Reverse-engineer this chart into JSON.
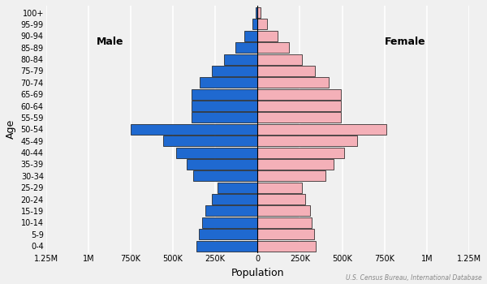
{
  "age_groups": [
    "0-4",
    "5-9",
    "10-14",
    "15-19",
    "20-24",
    "25-29",
    "30-34",
    "35-39",
    "40-44",
    "45-49",
    "50-54",
    "55-59",
    "60-64",
    "65-69",
    "70-74",
    "75-79",
    "80-84",
    "85-89",
    "90-94",
    "95-99",
    "100+"
  ],
  "male": [
    360000,
    345000,
    330000,
    310000,
    270000,
    235000,
    380000,
    420000,
    480000,
    560000,
    750000,
    390000,
    390000,
    390000,
    340000,
    270000,
    200000,
    130000,
    80000,
    30000,
    10000
  ],
  "female": [
    345000,
    335000,
    320000,
    310000,
    280000,
    260000,
    400000,
    450000,
    510000,
    590000,
    760000,
    490000,
    490000,
    490000,
    420000,
    340000,
    260000,
    185000,
    120000,
    55000,
    20000
  ],
  "male_color": "#1f69d0",
  "female_color": "#f4b0b8",
  "bar_edgecolor": "#111111",
  "bar_linewidth": 0.5,
  "xlabel": "Population",
  "ylabel": "Age",
  "xlim": 1250000,
  "xticks": [
    -1250000,
    -1000000,
    -750000,
    -500000,
    -250000,
    0,
    250000,
    500000,
    750000,
    1000000,
    1250000
  ],
  "xticklabels": [
    "1.25M",
    "1M",
    "750K",
    "500K",
    "250K",
    "0",
    "250K",
    "500K",
    "750K",
    "1M",
    "1.25M"
  ],
  "male_label": "Male",
  "female_label": "Female",
  "source_text": "U.S. Census Bureau, International Database",
  "bg_color": "#f0f0f0",
  "gridcolor": "#ffffff",
  "tick_fontsize": 7,
  "label_fontsize": 9,
  "male_label_fontsize": 9,
  "female_label_fontsize": 9
}
